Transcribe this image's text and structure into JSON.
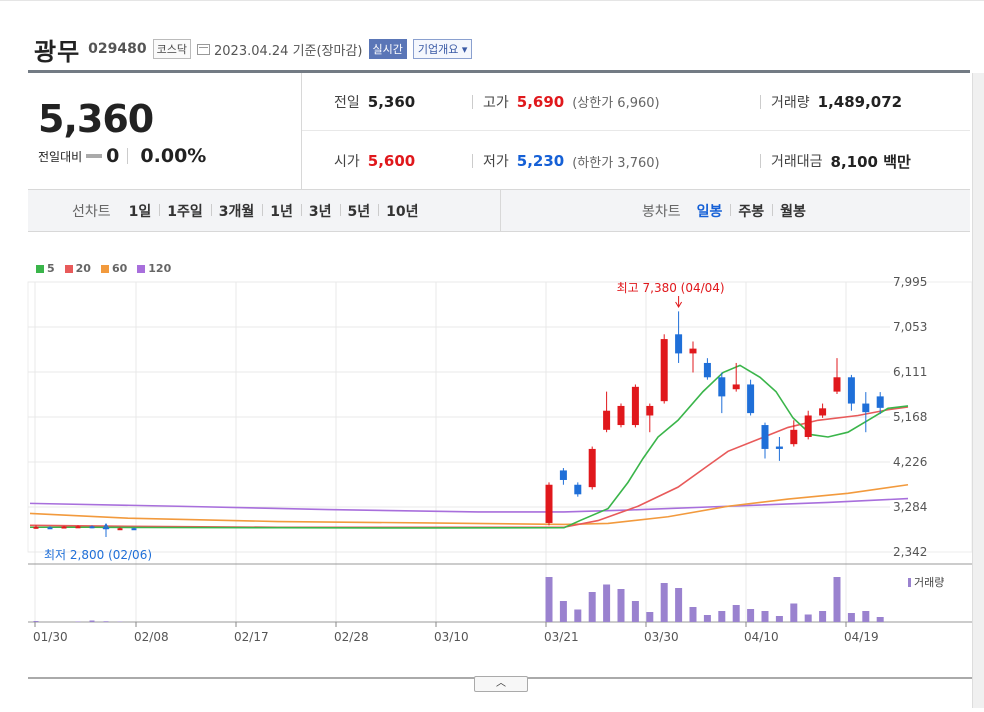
{
  "stock": {
    "name": "광무",
    "code": "029480",
    "market": "코스닥",
    "date_label": "2023.04.24 기준(장마감)",
    "realtime_label": "실시간",
    "corp_label": "기업개요"
  },
  "summary": {
    "price": "5,360",
    "change_label": "전일대비",
    "change_value": "0",
    "change_pct": "0.00%",
    "prev_label": "전일",
    "prev_value": "5,360",
    "high_label": "고가",
    "high_value": "5,690",
    "upper_limit": "(상한가 6,960)",
    "volume_label": "거래량",
    "volume_value": "1,489,072",
    "open_label": "시가",
    "open_value": "5,600",
    "low_label": "저가",
    "low_value": "5,230",
    "lower_limit": "(하한가 3,760)",
    "amount_label": "거래대금",
    "amount_value": "8,100 백만"
  },
  "periods": {
    "line_label": "선차트",
    "line_items": [
      "1일",
      "1주일",
      "3개월",
      "1년",
      "3년",
      "5년",
      "10년"
    ],
    "candle_label": "봉차트",
    "candle_items": [
      "일봉",
      "주봉",
      "월봉"
    ],
    "candle_selected": "일봉"
  },
  "colors": {
    "up": "#e0181c",
    "down": "#1f6fd8",
    "ma5": "#3ab54a",
    "ma20": "#e85a5a",
    "ma60": "#f29a3d",
    "ma120": "#a86fdc",
    "volume": "#9a82cf"
  },
  "chart_data": {
    "type": "candlestick",
    "legend": [
      "5",
      "20",
      "60",
      "120"
    ],
    "volume_label": "거래량",
    "ylim": [
      2342,
      7995
    ],
    "y_ticks": [
      "7,995",
      "7,053",
      "6,111",
      "5,168",
      "4,226",
      "3,284",
      "2,342"
    ],
    "x_labels": [
      "01/30",
      "02/08",
      "02/17",
      "02/28",
      "03/10",
      "03/21",
      "03/30",
      "04/10",
      "04/19"
    ],
    "max_annotation": "최고 7,380 (04/04)",
    "min_annotation": "최저 2,800 (02/06)",
    "early_candles": [
      {
        "o": 2850,
        "c": 2870,
        "h": 2900,
        "l": 2830
      },
      {
        "o": 2860,
        "c": 2850,
        "h": 2880,
        "l": 2830
      },
      {
        "o": 2850,
        "c": 2875,
        "h": 2890,
        "l": 2840
      },
      {
        "o": 2870,
        "c": 2880,
        "h": 2900,
        "l": 2850
      },
      {
        "o": 2880,
        "c": 2860,
        "h": 2900,
        "l": 2840
      },
      {
        "o": 2860,
        "c": 2830,
        "h": 2870,
        "l": 2800
      },
      {
        "o": 2830,
        "c": 2840,
        "h": 2860,
        "l": 2820
      },
      {
        "o": 2840,
        "c": 2835,
        "h": 2850,
        "l": 2825
      }
    ],
    "late_candles": [
      {
        "o": 2950,
        "c": 3750,
        "h": 3800,
        "l": 2900
      },
      {
        "o": 4050,
        "c": 3850,
        "h": 4100,
        "l": 3750
      },
      {
        "o": 3750,
        "c": 3550,
        "h": 3800,
        "l": 3500
      },
      {
        "o": 3700,
        "c": 4500,
        "h": 4550,
        "l": 3650
      },
      {
        "o": 4900,
        "c": 5300,
        "h": 5700,
        "l": 4850
      },
      {
        "o": 5000,
        "c": 5400,
        "h": 5450,
        "l": 4950
      },
      {
        "o": 5000,
        "c": 5800,
        "h": 5850,
        "l": 4950
      },
      {
        "o": 5200,
        "c": 5400,
        "h": 5450,
        "l": 4850
      },
      {
        "o": 5500,
        "c": 6800,
        "h": 6900,
        "l": 5450
      },
      {
        "o": 6900,
        "c": 6500,
        "h": 7380,
        "l": 6300
      },
      {
        "o": 6500,
        "c": 6600,
        "h": 6750,
        "l": 6100
      },
      {
        "o": 6300,
        "c": 6000,
        "h": 6400,
        "l": 5950
      },
      {
        "o": 6000,
        "c": 5600,
        "h": 6100,
        "l": 5250
      },
      {
        "o": 5750,
        "c": 5850,
        "h": 6300,
        "l": 5700
      },
      {
        "o": 5850,
        "c": 5250,
        "h": 5950,
        "l": 5200
      },
      {
        "o": 5000,
        "c": 4500,
        "h": 5050,
        "l": 4300
      },
      {
        "o": 4550,
        "c": 4500,
        "h": 4750,
        "l": 4250
      },
      {
        "o": 4600,
        "c": 4900,
        "h": 5100,
        "l": 4550
      },
      {
        "o": 4750,
        "c": 5200,
        "h": 5300,
        "l": 4700
      },
      {
        "o": 5200,
        "c": 5350,
        "h": 5450,
        "l": 5150
      },
      {
        "o": 5700,
        "c": 6000,
        "h": 6400,
        "l": 5650
      },
      {
        "o": 6000,
        "c": 5450,
        "h": 6050,
        "l": 5300
      },
      {
        "o": 5450,
        "c": 5270,
        "h": 5690,
        "l": 4850
      },
      {
        "o": 5600,
        "c": 5360,
        "h": 5690,
        "l": 5230
      }
    ],
    "early_volume": [
      0.02,
      0,
      0,
      0.01,
      0.03,
      0.015,
      0.008,
      0
    ],
    "late_volume": [
      0.9,
      0.42,
      0.25,
      0.6,
      0.75,
      0.66,
      0.42,
      0.2,
      0.78,
      0.68,
      0.3,
      0.14,
      0.22,
      0.34,
      0.26,
      0.22,
      0.12,
      0.37,
      0.15,
      0.22,
      0.9,
      0.18,
      0.22,
      0.1
    ],
    "ma5": [
      [
        2,
        2860
      ],
      [
        60,
        2860
      ],
      [
        120,
        2855
      ],
      [
        250,
        2850
      ],
      [
        400,
        2845
      ],
      [
        536,
        2850
      ],
      [
        552,
        3000
      ],
      [
        580,
        3250
      ],
      [
        600,
        3800
      ],
      [
        615,
        4300
      ],
      [
        630,
        4750
      ],
      [
        650,
        5100
      ],
      [
        675,
        5700
      ],
      [
        695,
        6100
      ],
      [
        712,
        6250
      ],
      [
        732,
        6000
      ],
      [
        748,
        5700
      ],
      [
        765,
        5150
      ],
      [
        783,
        4800
      ],
      [
        800,
        4750
      ],
      [
        820,
        4850
      ],
      [
        840,
        5100
      ],
      [
        860,
        5350
      ],
      [
        880,
        5400
      ]
    ],
    "ma20": [
      [
        2,
        2900
      ],
      [
        100,
        2880
      ],
      [
        250,
        2860
      ],
      [
        400,
        2860
      ],
      [
        536,
        2860
      ],
      [
        570,
        3000
      ],
      [
        610,
        3300
      ],
      [
        650,
        3700
      ],
      [
        680,
        4150
      ],
      [
        700,
        4450
      ],
      [
        730,
        4700
      ],
      [
        760,
        4950
      ],
      [
        790,
        5100
      ],
      [
        830,
        5200
      ],
      [
        860,
        5320
      ],
      [
        880,
        5380
      ]
    ],
    "ma60": [
      [
        2,
        3150
      ],
      [
        100,
        3050
      ],
      [
        250,
        2980
      ],
      [
        400,
        2950
      ],
      [
        536,
        2920
      ],
      [
        580,
        2940
      ],
      [
        640,
        3080
      ],
      [
        700,
        3300
      ],
      [
        760,
        3450
      ],
      [
        820,
        3570
      ],
      [
        880,
        3750
      ]
    ],
    "ma120": [
      [
        2,
        3360
      ],
      [
        150,
        3300
      ],
      [
        300,
        3230
      ],
      [
        450,
        3180
      ],
      [
        536,
        3180
      ],
      [
        600,
        3220
      ],
      [
        700,
        3300
      ],
      [
        800,
        3380
      ],
      [
        880,
        3460
      ]
    ]
  }
}
